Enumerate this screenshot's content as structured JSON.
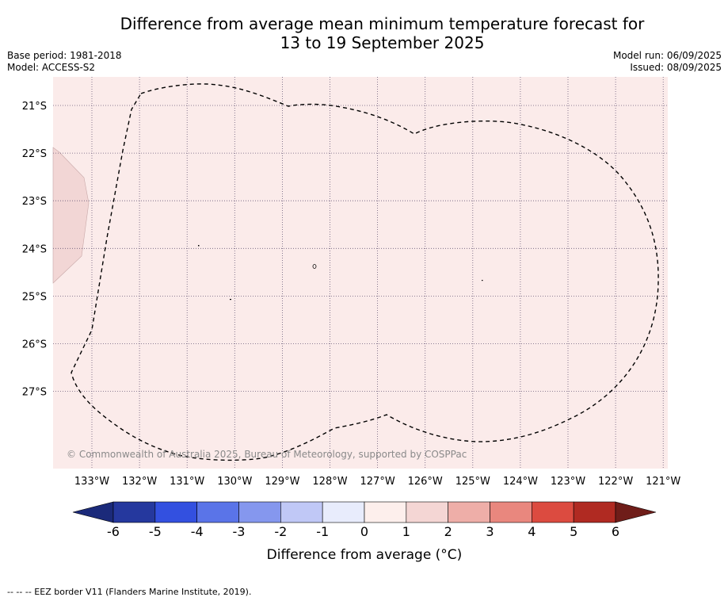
{
  "title": {
    "line1": "Difference from average mean minimum temperature forecast for",
    "line2": "13 to 19 September 2025"
  },
  "info_left": {
    "base_period": "Base period: 1981-2018",
    "model": "Model: ACCESS-S2"
  },
  "info_right": {
    "model_run": "Model run: 06/09/2025",
    "issued": "Issued: 08/09/2025"
  },
  "map": {
    "lon_labels": [
      "133°W",
      "132°W",
      "131°W",
      "130°W",
      "129°W",
      "128°W",
      "127°W",
      "126°W",
      "125°W",
      "124°W",
      "123°W",
      "122°W",
      "121°W"
    ],
    "lat_labels": [
      "21°S",
      "22°S",
      "23°S",
      "24°S",
      "25°S",
      "26°S",
      "27°S"
    ],
    "background_color": "#fbebea",
    "anomaly_region_color": "#f2d6d5",
    "copyright": "© Commonwealth of Australia 2025, Bureau of Meteorology, supported by COSPPac"
  },
  "colorbar": {
    "ticks": [
      "-6",
      "-5",
      "-4",
      "-3",
      "-2",
      "-1",
      "0",
      "1",
      "2",
      "3",
      "4",
      "5",
      "6"
    ],
    "colors": [
      "#25389e",
      "#3350e0",
      "#5a74e8",
      "#8597ee",
      "#c0c8f6",
      "#e8ecfc",
      "#fdefec",
      "#f4d6d4",
      "#eeaea8",
      "#e9877e",
      "#dc4b40",
      "#b02a22"
    ],
    "under_color": "#1b2a7a",
    "over_color": "#6f1d19",
    "label": "Difference from average (°C)"
  },
  "legend": {
    "eez_text": "--  --  -- EEZ border V11 (Flanders Marine Institute, 2019)."
  }
}
